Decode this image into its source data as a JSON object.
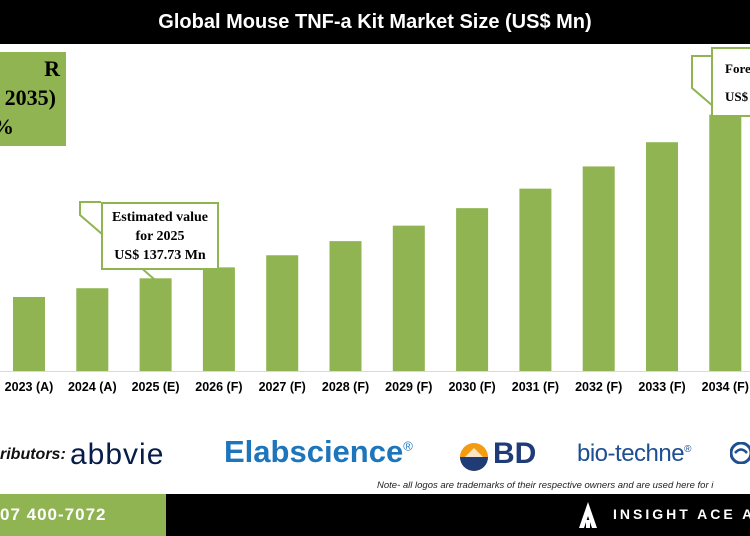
{
  "chart_data": {
    "type": "bar",
    "title": "Global Mouse TNF-a Kit Market Size (US$ Mn)",
    "categories": [
      "2023 (A)",
      "2024 (A)",
      "2025 (E)",
      "2026 (F)",
      "2027 (F)",
      "2028 (F)",
      "2029 (F)",
      "2030 (F)",
      "2031 (F)",
      "2032 (F)",
      "2033 (F)",
      "2034 (F)"
    ],
    "series": [
      {
        "values": [
          110,
          123,
          137.73,
          154,
          172,
          193,
          216,
          242,
          271,
          304,
          340,
          381
        ]
      }
    ],
    "ylim": [
      0,
      480
    ],
    "grid": false,
    "bar_color": "#8fb451"
  },
  "cagr_box": {
    "line1": "R",
    "line2": "2035)",
    "line3": "%"
  },
  "callouts": {
    "estimated": {
      "line1": "Estimated value",
      "line2": "for 2025",
      "line3": "US$ 137.73 Mn"
    },
    "forecast": {
      "line1": "Fore",
      "line2": "US$"
    }
  },
  "distributors": {
    "label": "ributors:",
    "logos": [
      "abbvie",
      "Elabscience",
      "BD",
      "bio-techne"
    ],
    "elab_mark": "®",
    "bio_mark": "®"
  },
  "note": "Note- all logos are trademarks of their respective owners and are used here for i",
  "footer": {
    "phone": "07 400-7072",
    "brand": "INSIGHT ACE A"
  },
  "colors": {
    "accent": "#8fb451",
    "header": "#000000"
  }
}
